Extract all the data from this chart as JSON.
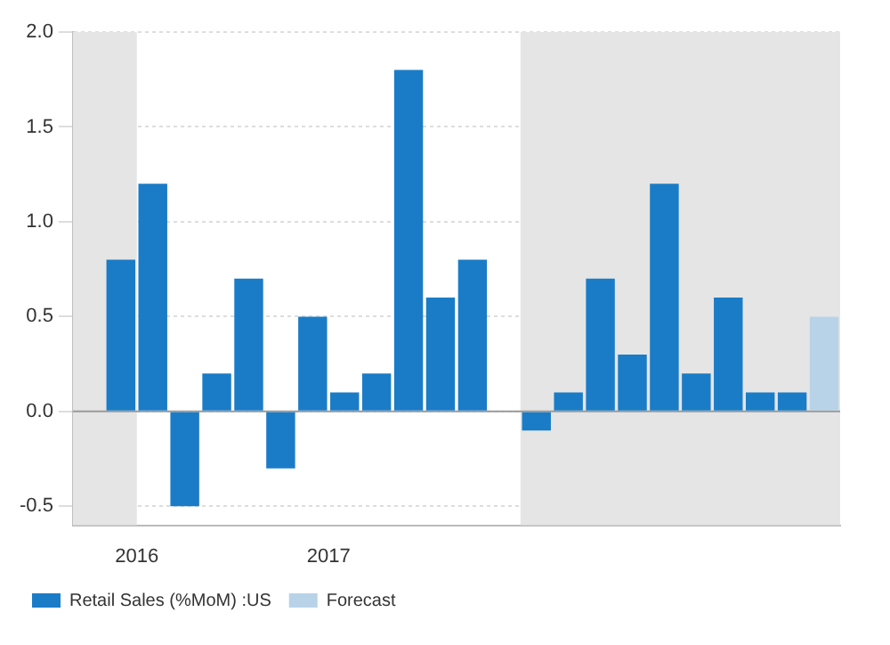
{
  "chart_data": {
    "type": "bar",
    "x": [
      "2015-10",
      "2015-12",
      "2016-02",
      "2016-04",
      "2016-06",
      "2016-08",
      "2016-10",
      "2016-12",
      "2017-02",
      "2017-04",
      "2017-06",
      "2017-08",
      "2017-10",
      "2017-12",
      "2018-02",
      "2018-04",
      "2018-06",
      "2018-08",
      "2018-10",
      "2018-12",
      "2019-02",
      "2019-04",
      "2019-06",
      "2019-08"
    ],
    "series": [
      {
        "name": "Retail Sales (%MoM) :US",
        "color": "#1a7cc7",
        "values": [
          0.0,
          0.8,
          1.2,
          -0.5,
          0.2,
          0.7,
          -0.3,
          0.5,
          0.1,
          0.2,
          1.8,
          0.6,
          0.8,
          0.0,
          -0.1,
          0.1,
          0.7,
          0.3,
          1.2,
          0.2,
          0.6,
          0.1,
          0.1,
          null
        ]
      },
      {
        "name": "Forecast",
        "color": "#b8d3e8",
        "values": [
          null,
          null,
          null,
          null,
          null,
          null,
          null,
          null,
          null,
          null,
          null,
          null,
          null,
          null,
          null,
          null,
          null,
          null,
          null,
          null,
          null,
          null,
          null,
          0.5
        ]
      }
    ],
    "xlim": [
      "2015-09",
      "2019-09"
    ],
    "xticks": [
      "2016",
      "2017"
    ],
    "ylim": [
      -0.6,
      2.0
    ],
    "yticks": [
      {
        "value": -0.5,
        "label": "-0.5"
      },
      {
        "value": 0,
        "label": "0.0"
      },
      {
        "value": 0.5,
        "label": "0.5"
      },
      {
        "value": 1,
        "label": "1.0"
      },
      {
        "value": 1.5,
        "label": "1.5"
      },
      {
        "value": 2,
        "label": "2.0"
      }
    ],
    "bands": [
      {
        "axis": "x",
        "from": "2015-09",
        "to": "2016",
        "color": "#e5e5e5"
      },
      {
        "axis": "x",
        "from": "2018",
        "to": "2019-09",
        "color": "#e5e5e5"
      }
    ],
    "ref_lines": [
      {
        "axis": "y",
        "value": 0,
        "color": "#9a9a9a"
      }
    ],
    "grid": "y",
    "legend": "bottom left"
  }
}
